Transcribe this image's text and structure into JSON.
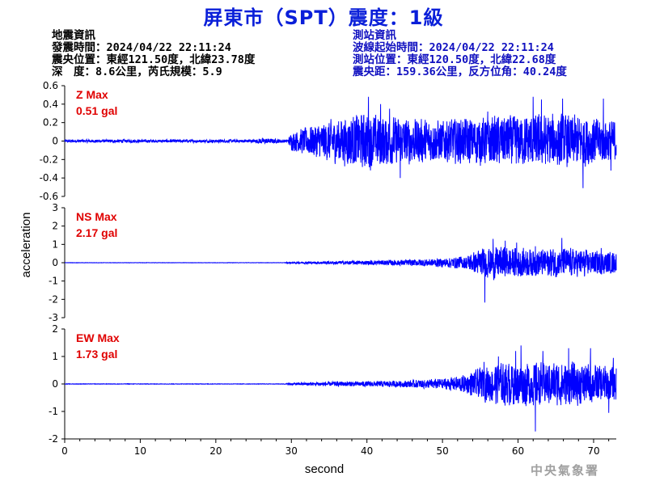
{
  "header": {
    "title": "屏東市（SPT）震度：1級",
    "earthquake": {
      "heading": "地震資訊",
      "time": "發震時間：2024/04/22 22:11:24",
      "epicenter": "震央位置：東經121.50度，北緯23.78度",
      "depth_magnitude": "深　度：8.6公里，芮氏規模：5.9"
    },
    "station": {
      "heading": "測站資訊",
      "wave_start": "波線起始時間：2024/04/22 22:11:24",
      "location": "測站位置：東經120.50度，北緯22.68度",
      "distance": "震央距：159.36公里，反方位角：40.24度"
    }
  },
  "footer": {
    "agency": "中央氣象署"
  },
  "colors": {
    "title": "#0a1fd9",
    "trace": "#0000ff",
    "max_label": "#e00000",
    "station_text": "#1010c0",
    "agency": "#a0a0a0"
  },
  "chart_data": {
    "type": "line",
    "xlabel": "second",
    "ylabel": "acceleration",
    "xlim": [
      0,
      73
    ],
    "x_ticks": [
      0,
      10,
      20,
      30,
      40,
      50,
      60,
      70
    ],
    "grid": false,
    "panels": [
      {
        "name": "Z",
        "max_label": "Z Max",
        "max_value": "0.51 gal",
        "ylim": [
          -0.6,
          0.6
        ],
        "y_ticks": [
          0.6,
          0.4,
          0.2,
          0,
          -0.2,
          -0.4,
          -0.6
        ],
        "y_tick_labels": [
          "0.6",
          "0.4",
          "0.2",
          "0",
          "-0.2",
          "-0.4",
          "-0.6"
        ],
        "envelope": [
          [
            0,
            0.02
          ],
          [
            25,
            0.02
          ],
          [
            26,
            0.04
          ],
          [
            29.5,
            0.02
          ],
          [
            30,
            0.12
          ],
          [
            33,
            0.22
          ],
          [
            37,
            0.32
          ],
          [
            40,
            0.38
          ],
          [
            42,
            0.34
          ],
          [
            46,
            0.3
          ],
          [
            50,
            0.28
          ],
          [
            55,
            0.32
          ],
          [
            60,
            0.34
          ],
          [
            65,
            0.36
          ],
          [
            68,
            0.34
          ],
          [
            73,
            0.28
          ]
        ],
        "peaks": [
          [
            40.2,
            0.48
          ],
          [
            41.8,
            0.4
          ],
          [
            43.0,
            0.35
          ],
          [
            44.4,
            -0.4
          ],
          [
            47.0,
            -0.35
          ],
          [
            56.0,
            0.32
          ],
          [
            62.0,
            0.48
          ],
          [
            63.1,
            0.45
          ],
          [
            65.9,
            0.46
          ],
          [
            68.6,
            -0.51
          ],
          [
            71.3,
            0.46
          ],
          [
            72.3,
            -0.32
          ]
        ]
      },
      {
        "name": "NS",
        "max_label": "NS Max",
        "max_value": "2.17 gal",
        "ylim": [
          -3,
          3
        ],
        "y_ticks": [
          3,
          2,
          1,
          0,
          -1,
          -2,
          -3
        ],
        "y_tick_labels": [
          "3",
          "2",
          "1",
          "0",
          "-1",
          "-2",
          "-3"
        ],
        "envelope": [
          [
            0,
            0.01
          ],
          [
            29,
            0.01
          ],
          [
            30,
            0.05
          ],
          [
            35,
            0.1
          ],
          [
            40,
            0.15
          ],
          [
            45,
            0.2
          ],
          [
            50,
            0.3
          ],
          [
            53,
            0.45
          ],
          [
            55,
            0.9
          ],
          [
            57,
            1.1
          ],
          [
            60,
            1.0
          ],
          [
            63,
            0.9
          ],
          [
            66,
            1.0
          ],
          [
            70,
            0.8
          ],
          [
            73,
            0.7
          ]
        ],
        "peaks": [
          [
            55.6,
            -2.17
          ],
          [
            56.7,
            1.3
          ],
          [
            58.3,
            1.2
          ],
          [
            59.8,
            1.1
          ],
          [
            62.3,
            0.9
          ],
          [
            65.8,
            1.35
          ],
          [
            68.8,
            -0.75
          ],
          [
            71.0,
            0.8
          ],
          [
            72.5,
            -0.5
          ]
        ]
      },
      {
        "name": "EW",
        "max_label": "EW Max",
        "max_value": "1.73 gal",
        "ylim": [
          -2,
          2
        ],
        "y_ticks": [
          2,
          1,
          0,
          -1,
          -2
        ],
        "y_tick_labels": [
          "2",
          "1",
          "0",
          "-1",
          "-2"
        ],
        "envelope": [
          [
            0,
            0.01
          ],
          [
            29,
            0.01
          ],
          [
            30,
            0.05
          ],
          [
            35,
            0.1
          ],
          [
            40,
            0.12
          ],
          [
            45,
            0.15
          ],
          [
            50,
            0.25
          ],
          [
            53,
            0.4
          ],
          [
            55,
            0.7
          ],
          [
            57,
            0.9
          ],
          [
            60,
            1.0
          ],
          [
            63,
            0.95
          ],
          [
            66,
            1.0
          ],
          [
            70,
            0.85
          ],
          [
            73,
            0.8
          ]
        ],
        "peaks": [
          [
            55.5,
            0.8
          ],
          [
            57.4,
            1.0
          ],
          [
            59.7,
            1.2
          ],
          [
            60.4,
            1.4
          ],
          [
            62.3,
            -1.73
          ],
          [
            63.3,
            1.2
          ],
          [
            66.7,
            1.3
          ],
          [
            69.6,
            1.3
          ],
          [
            72.6,
            0.95
          ],
          [
            72.0,
            -1.05
          ]
        ]
      }
    ]
  }
}
